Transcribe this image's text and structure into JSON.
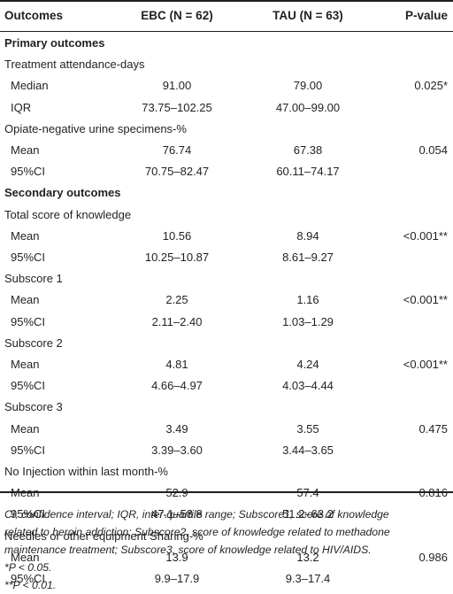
{
  "headers": [
    "Outcomes",
    "EBC (N = 62)",
    "TAU (N = 63)",
    "P-value"
  ],
  "rows": [
    {
      "kind": "section",
      "cells": [
        "Primary outcomes",
        "",
        "",
        ""
      ]
    },
    {
      "kind": "group",
      "cells": [
        "Treatment attendance-days",
        "",
        "",
        ""
      ]
    },
    {
      "kind": "sub",
      "cells": [
        "Median",
        "91.00",
        "79.00",
        "0.025*"
      ]
    },
    {
      "kind": "sub",
      "cells": [
        "IQR",
        "73.75–102.25",
        "47.00–99.00",
        ""
      ]
    },
    {
      "kind": "group",
      "cells": [
        "Opiate-negative urine specimens-%",
        "",
        "",
        ""
      ]
    },
    {
      "kind": "sub",
      "cells": [
        "Mean",
        "76.74",
        "67.38",
        "0.054"
      ]
    },
    {
      "kind": "sub",
      "cells": [
        "95%CI",
        "70.75–82.47",
        "60.11–74.17",
        ""
      ]
    },
    {
      "kind": "section",
      "cells": [
        "Secondary outcomes",
        "",
        "",
        ""
      ]
    },
    {
      "kind": "group",
      "cells": [
        "Total score of knowledge",
        "",
        "",
        ""
      ]
    },
    {
      "kind": "sub",
      "cells": [
        "Mean",
        "10.56",
        "8.94",
        "<0.001**"
      ]
    },
    {
      "kind": "sub",
      "cells": [
        "95%CI",
        "10.25–10.87",
        "8.61–9.27",
        ""
      ]
    },
    {
      "kind": "group",
      "cells": [
        "Subscore 1",
        "",
        "",
        ""
      ]
    },
    {
      "kind": "sub",
      "cells": [
        "Mean",
        "2.25",
        "1.16",
        "<0.001**"
      ]
    },
    {
      "kind": "sub",
      "cells": [
        "95%CI",
        "2.11–2.40",
        "1.03–1.29",
        ""
      ]
    },
    {
      "kind": "group",
      "cells": [
        "Subscore 2",
        "",
        "",
        ""
      ]
    },
    {
      "kind": "sub",
      "cells": [
        "Mean",
        "4.81",
        "4.24",
        "<0.001**"
      ]
    },
    {
      "kind": "sub",
      "cells": [
        "95%CI",
        "4.66–4.97",
        "4.03–4.44",
        ""
      ]
    },
    {
      "kind": "group",
      "cells": [
        "Subscore 3",
        "",
        "",
        ""
      ]
    },
    {
      "kind": "sub",
      "cells": [
        "Mean",
        "3.49",
        "3.55",
        "0.475"
      ]
    },
    {
      "kind": "sub",
      "cells": [
        "95%CI",
        "3.39–3.60",
        "3.44–3.65",
        ""
      ]
    },
    {
      "kind": "group",
      "cells": [
        "No Injection within last month-%",
        "",
        "",
        ""
      ]
    },
    {
      "kind": "sub",
      "cells": [
        "Mean",
        "52.9",
        "57.4",
        "0.816"
      ]
    },
    {
      "kind": "sub",
      "cells": [
        "95%CI",
        "47.1–58.8",
        "51.2–63.2",
        ""
      ]
    },
    {
      "kind": "group",
      "cells": [
        "Needles or other equipment Sharing-%",
        "",
        "",
        ""
      ]
    },
    {
      "kind": "sub",
      "cells": [
        "Mean",
        "13.9",
        "13.2",
        "0.986"
      ]
    },
    {
      "kind": "sub",
      "cells": [
        "95%CI",
        "9.9–17.9",
        "9.3–17.4",
        ""
      ]
    }
  ],
  "footnotes": [
    "CI, confidence interval; IQR, inter-quartile range; Subscore1, score of knowledge",
    "related to heroin addiction; Subscore2, score of knowledge related to methadone",
    "maintenance treatment; Subscore3, score of knowledge related to HIV/AIDS.",
    "*P < 0.05.",
    "**P < 0.01."
  ]
}
